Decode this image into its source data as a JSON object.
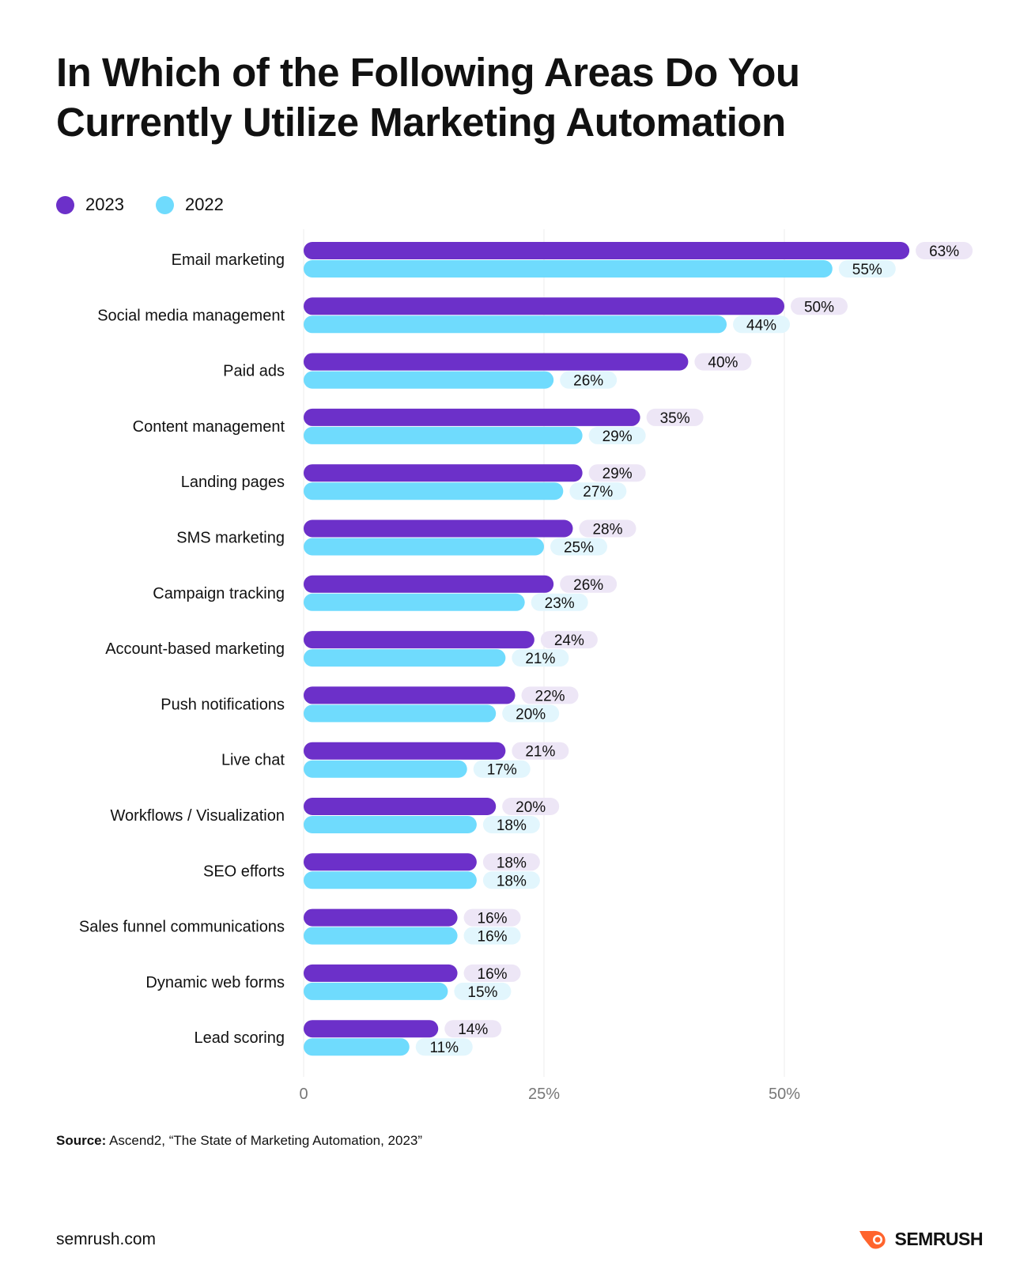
{
  "title_line1": "In Which of the Following Areas Do You",
  "title_line2": "Currently Utilize Marketing Automation",
  "colors": {
    "2023": "#6c30c9",
    "2022": "#6fdbfd",
    "pill_2023": "#ede6f6",
    "pill_2022": "#e2f6fd",
    "brand": "#ff642d"
  },
  "chart_data": {
    "type": "bar",
    "orientation": "horizontal",
    "title": "In Which of the Following Areas Do You Currently Utilize Marketing Automation",
    "categories": [
      "Email marketing",
      "Social media management",
      "Paid ads",
      "Content management",
      "Landing pages",
      "SMS marketing",
      "Campaign tracking",
      "Account-based marketing",
      "Push notifications",
      "Live chat",
      "Workflows / Visualization",
      "SEO efforts",
      "Sales funnel communications",
      "Dynamic web forms",
      "Lead scoring"
    ],
    "series": [
      {
        "name": "2023",
        "values": [
          63,
          50,
          40,
          35,
          29,
          28,
          26,
          24,
          22,
          21,
          20,
          18,
          16,
          16,
          14
        ]
      },
      {
        "name": "2022",
        "values": [
          55,
          44,
          26,
          29,
          27,
          25,
          23,
          21,
          20,
          17,
          18,
          18,
          16,
          15,
          11
        ]
      }
    ],
    "xlim": [
      0,
      70
    ],
    "xticks": [
      "0",
      "25%",
      "50%"
    ],
    "xtick_values": [
      0,
      25,
      50
    ],
    "grid": true,
    "legend": "top-left"
  },
  "source_label": "Source:",
  "source_text": "Ascend2, “The State of Marketing Automation, 2023”",
  "footer_site": "semrush.com",
  "logo_text": "SEMRUSH"
}
